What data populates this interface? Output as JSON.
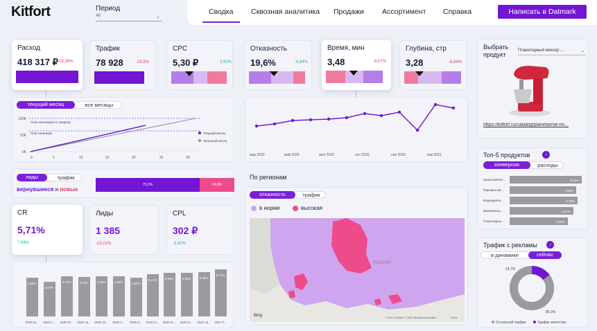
{
  "logo": "Kitfort",
  "period": {
    "label": "Период",
    "value": "All"
  },
  "nav": {
    "items": [
      "Сводка",
      "Сквозная аналитика",
      "Продажи",
      "Ассортимент",
      "Справка"
    ],
    "cta": "Написать в Datmark"
  },
  "kpis": [
    {
      "title": "Расход",
      "value": "418 317 ₽",
      "delta": "-16,34%"
    },
    {
      "title": "Трафик",
      "value": "78 928",
      "delta": "-19,5%"
    },
    {
      "title": "CPC",
      "value": "5,30 ₽",
      "delta": "3,92%"
    },
    {
      "title": "Отказность",
      "value": "19,6%",
      "delta": "-6,84%"
    },
    {
      "title": "Время, мин",
      "value": "3,48",
      "delta": "-4,57%"
    },
    {
      "title": "Глубина, стр",
      "value": "3,28",
      "delta": "-8,64%"
    }
  ],
  "month_toggle": {
    "on": "текущий месяц",
    "off": "все месяцы"
  },
  "line_small": {
    "y_ticks": [
      "100K",
      "50K",
      "0K"
    ],
    "x_ticks": [
      "0",
      "5",
      "10",
      "15",
      "20",
      "25",
      "30"
    ],
    "annotations": [
      "План максимум по трафику",
      "План минимум"
    ],
    "legend": [
      "Текущий месяц",
      "Прошлый месяц"
    ]
  },
  "trend": {
    "x_ticks": [
      "мар 2020",
      "май 2020",
      "июл 2020",
      "сен 2020",
      "ноя 2020",
      "янв 2021"
    ]
  },
  "leads_toggle": {
    "on": "лиды",
    "off": "трафик"
  },
  "returning": {
    "word1": "вернувшиеся",
    "and": "и",
    "word2": "новые",
    "left_value": "75,2%",
    "right_value": "24,8%"
  },
  "kpis2": [
    {
      "title": "CR",
      "value": "5,71%",
      "delta": "7,94%"
    },
    {
      "title": "Лиды",
      "value": "1 385",
      "delta": "-13,01%"
    },
    {
      "title": "CPL",
      "value": "302 ₽",
      "delta": "-3,82%"
    }
  ],
  "bars": {
    "labels": [
      "4,35%",
      "4,07%",
      "4,77%",
      "4,72%",
      "4,73%",
      "4,59%",
      "4,57%",
      "5,11%",
      "5,39%",
      "5,22%",
      "5,38%",
      "5,71%"
    ],
    "x_ticks": [
      "2020 M...",
      "2020 A...",
      "2020 M...",
      "2020 Ju...",
      "2020 Ju...",
      "2020 A...",
      "2020 S...",
      "2020 O...",
      "2020 N...",
      "2020 D...",
      "2021 Ja...",
      "2021 F..."
    ]
  },
  "regions": {
    "title": "По регионам",
    "toggle_on": "отказность",
    "toggle_off": "трафик",
    "legend_norm": "в норме",
    "legend_high": "высокая",
    "map_label": "РОССИЯ",
    "bing": "Bing",
    "copyright": "© 2021 TomTom, © 2021 Microsoft Corporation",
    "terms": "Terms",
    "colors": {
      "norm": "#cfa5ef",
      "high": "#ee4b8b"
    }
  },
  "product": {
    "label": "Выбрать продукт",
    "value": "Планетарный миксер ...",
    "link": "https://kitfort.ru/catalog/planetarnie-mi..."
  },
  "top5": {
    "title": "Топ-5 продуктов",
    "toggle_on": "конверсия",
    "toggle_off": "расходы",
    "rows": [
      {
        "name": "Цельнометал...",
        "value": "5,11%"
      },
      {
        "name": "Паровая шв...",
        "value": "4,66%"
      },
      {
        "name": "Индукционн...",
        "value": "4,78%"
      },
      {
        "name": "Вертикальн...",
        "value": "4,47%"
      },
      {
        "name": "Планетарны...",
        "value": "4,06%"
      }
    ]
  },
  "ads": {
    "title": "Трафик с рекламы",
    "toggle_off": "в динамике",
    "toggle_on": "сейчас",
    "small": "14,7%",
    "big": "85,3%",
    "legend1": "Остальной трафик",
    "legend2": "Трафик агентства"
  }
}
